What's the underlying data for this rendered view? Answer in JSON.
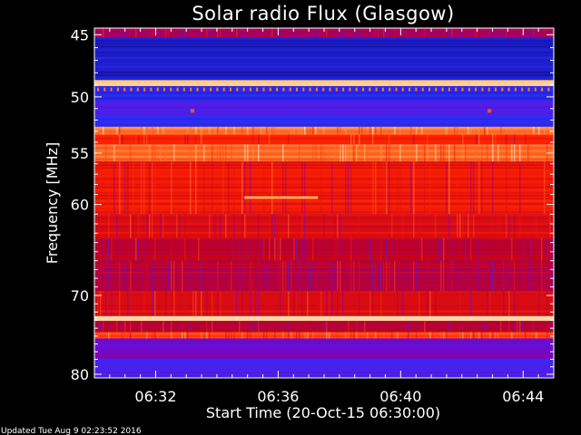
{
  "chart_data": {
    "type": "heatmap",
    "title": "Solar radio Flux (Glasgow)",
    "xlabel": "Start Time (20-Oct-15 06:30:00)",
    "ylabel": "Frequency [MHz]",
    "x_tick_labels": [
      "06:32",
      "06:36",
      "06:40",
      "06:44"
    ],
    "x_tick_minutes": [
      2,
      6,
      10,
      14
    ],
    "xlim_minutes": [
      0,
      15
    ],
    "y_tick_labels": [
      "45",
      "50",
      "55",
      "60",
      "70",
      "80"
    ],
    "y_ticks": [
      45,
      50,
      55,
      60,
      70,
      80
    ],
    "ylim": [
      44.5,
      80.5
    ],
    "y_scale": "log",
    "grid": false,
    "colormap": [
      "#00002a",
      "#1010a0",
      "#3030ff",
      "#8000c0",
      "#c00020",
      "#ff2000",
      "#ff6020",
      "#ffc060",
      "#ffffff"
    ],
    "intensity_bands": [
      {
        "from": 44.5,
        "to": 45.2,
        "value": 0.45
      },
      {
        "from": 45.2,
        "to": 48.6,
        "value": 0.18
      },
      {
        "from": 48.6,
        "to": 49.1,
        "value": 0.9
      },
      {
        "from": 49.1,
        "to": 50.3,
        "value": 0.22
      },
      {
        "from": 50.3,
        "to": 51.6,
        "value": 0.3
      },
      {
        "from": 51.6,
        "to": 52.6,
        "value": 0.24
      },
      {
        "from": 52.6,
        "to": 53.3,
        "value": 0.78
      },
      {
        "from": 53.3,
        "to": 54.2,
        "value": 0.62
      },
      {
        "from": 54.2,
        "to": 55.8,
        "value": 0.76
      },
      {
        "from": 55.8,
        "to": 61.0,
        "value": 0.6
      },
      {
        "from": 61.0,
        "to": 63.5,
        "value": 0.55
      },
      {
        "from": 63.5,
        "to": 66.0,
        "value": 0.5
      },
      {
        "from": 66.0,
        "to": 69.5,
        "value": 0.48
      },
      {
        "from": 69.5,
        "to": 72.5,
        "value": 0.55
      },
      {
        "from": 72.5,
        "to": 73.1,
        "value": 0.92
      },
      {
        "from": 73.1,
        "to": 74.5,
        "value": 0.5
      },
      {
        "from": 74.5,
        "to": 75.3,
        "value": 0.7
      },
      {
        "from": 75.3,
        "to": 78.0,
        "value": 0.35
      },
      {
        "from": 78.0,
        "to": 80.5,
        "value": 0.28
      }
    ]
  },
  "footer": {
    "updated": "Updated Tue Aug  9 02:23:52 2016"
  }
}
